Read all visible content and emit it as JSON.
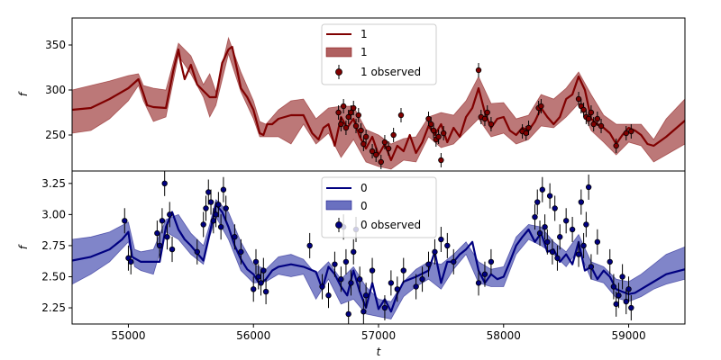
{
  "chart_data": [
    {
      "type": "line",
      "title": "",
      "xlabel": "",
      "ylabel": "f",
      "xlim": [
        54550,
        59450
      ],
      "ylim": [
        210,
        380
      ],
      "xticks": [],
      "yticks": [
        250,
        300,
        350
      ],
      "legend_position": "top-center",
      "colors": {
        "line": "#800000",
        "band": "#B06060",
        "points": "#800000"
      },
      "series": [
        {
          "name": "1",
          "kind": "mean",
          "x": [
            54550,
            54700,
            54850,
            55000,
            55080,
            55120,
            55150,
            55200,
            55300,
            55360,
            55400,
            55420,
            55450,
            55500,
            55550,
            55600,
            55650,
            55700,
            55750,
            55800,
            55830,
            55870,
            55900,
            55950,
            56000,
            56050,
            56080,
            56110,
            56150,
            56200,
            56300,
            56400,
            56470,
            56520,
            56560,
            56600,
            56650,
            56700,
            56750,
            56800,
            56850,
            56900,
            56950,
            57000,
            57050,
            57100,
            57150,
            57200,
            57250,
            57300,
            57350,
            57400,
            57450,
            57500,
            57550,
            57600,
            57650,
            57700,
            57750,
            57800,
            57850,
            57900,
            57950,
            58000,
            58050,
            58100,
            58150,
            58200,
            58250,
            58300,
            58350,
            58400,
            58450,
            58500,
            58550,
            58600,
            58650,
            58700,
            58750,
            58800,
            58850,
            58900,
            58950,
            59000,
            59050,
            59100,
            59150,
            59200,
            59300,
            59450
          ],
          "values": [
            278,
            280,
            290,
            302,
            312,
            296,
            283,
            281,
            280,
            322,
            345,
            330,
            312,
            328,
            306,
            299,
            292,
            292,
            330,
            345,
            348,
            322,
            302,
            292,
            278,
            252,
            250,
            262,
            262,
            268,
            272,
            272,
            252,
            245,
            258,
            262,
            238,
            270,
            258,
            268,
            248,
            235,
            248,
            228,
            240,
            222,
            238,
            232,
            250,
            230,
            242,
            260,
            250,
            262,
            242,
            258,
            248,
            270,
            280,
            302,
            275,
            258,
            268,
            270,
            255,
            250,
            258,
            255,
            265,
            280,
            270,
            262,
            270,
            290,
            295,
            315,
            300,
            268,
            262,
            258,
            252,
            240,
            250,
            258,
            255,
            250,
            240,
            238,
            248,
            266
          ]
        },
        {
          "name": "1",
          "kind": "band",
          "x": [
            54550,
            54700,
            54850,
            55000,
            55080,
            55120,
            55200,
            55300,
            55400,
            55500,
            55600,
            55650,
            55700,
            55800,
            55900,
            56000,
            56050,
            56100,
            56200,
            56300,
            56400,
            56500,
            56600,
            56700,
            56800,
            56900,
            57000,
            57100,
            57200,
            57300,
            57400,
            57500,
            57600,
            57700,
            57800,
            57900,
            58000,
            58100,
            58200,
            58300,
            58400,
            58500,
            58600,
            58700,
            58800,
            58900,
            59000,
            59100,
            59200,
            59300,
            59450
          ],
          "lower": [
            252,
            255,
            268,
            288,
            305,
            288,
            265,
            270,
            338,
            318,
            292,
            270,
            283,
            340,
            298,
            268,
            248,
            248,
            248,
            240,
            262,
            240,
            252,
            225,
            245,
            220,
            215,
            212,
            222,
            220,
            248,
            236,
            240,
            254,
            268,
            248,
            252,
            240,
            245,
            260,
            258,
            270,
            285,
            255,
            242,
            228,
            242,
            238,
            220,
            228,
            240
          ],
          "upper": [
            300,
            305,
            310,
            316,
            318,
            305,
            302,
            300,
            352,
            338,
            306,
            318,
            298,
            358,
            320,
            288,
            265,
            262,
            278,
            288,
            290,
            268,
            280,
            282,
            282,
            256,
            250,
            240,
            246,
            248,
            270,
            275,
            272,
            288,
            315,
            285,
            286,
            268,
            272,
            295,
            290,
            302,
            320,
            295,
            272,
            262,
            262,
            262,
            245,
            268,
            290
          ]
        },
        {
          "name": "1 observed",
          "kind": "observed",
          "x": [
            56680,
            56700,
            56720,
            56740,
            56760,
            56780,
            56800,
            56820,
            56840,
            56860,
            56880,
            56900,
            56950,
            56980,
            57020,
            57050,
            57080,
            57120,
            57180,
            57400,
            57420,
            57440,
            57460,
            57480,
            57500,
            57520,
            57800,
            57820,
            57850,
            57870,
            57900,
            58150,
            58180,
            58200,
            58280,
            58300,
            58600,
            58620,
            58640,
            58660,
            58680,
            58700,
            58720,
            58750,
            58780,
            58900,
            58980,
            59020
          ],
          "values": [
            275,
            262,
            282,
            258,
            270,
            275,
            280,
            260,
            272,
            255,
            240,
            248,
            232,
            228,
            220,
            242,
            235,
            250,
            272,
            268,
            262,
            255,
            245,
            248,
            222,
            252,
            322,
            270,
            268,
            275,
            262,
            254,
            252,
            258,
            280,
            282,
            290,
            282,
            278,
            270,
            268,
            275,
            262,
            268,
            260,
            238,
            252,
            254
          ]
        }
      ]
    },
    {
      "type": "line",
      "title": "",
      "xlabel": "t",
      "ylabel": "f",
      "xlim": [
        54550,
        59450
      ],
      "ylim": [
        2.12,
        3.35
      ],
      "xticks": [
        55000,
        56000,
        57000,
        58000,
        59000
      ],
      "yticks": [
        2.25,
        2.5,
        2.75,
        3.0,
        3.25
      ],
      "legend_position": "top-center",
      "colors": {
        "line": "#000080",
        "band": "#6A70C0",
        "points": "#000080"
      },
      "series": [
        {
          "name": "0",
          "kind": "mean",
          "x": [
            54550,
            54700,
            54850,
            54950,
            55000,
            55030,
            55100,
            55250,
            55300,
            55350,
            55400,
            55450,
            55500,
            55600,
            55650,
            55700,
            55750,
            55800,
            55850,
            55900,
            55950,
            56000,
            56050,
            56100,
            56150,
            56200,
            56300,
            56400,
            56500,
            56550,
            56600,
            56650,
            56700,
            56750,
            56800,
            56850,
            56900,
            56950,
            57000,
            57050,
            57100,
            57150,
            57200,
            57300,
            57400,
            57450,
            57500,
            57550,
            57600,
            57650,
            57700,
            57750,
            57800,
            57850,
            57900,
            57950,
            58000,
            58050,
            58100,
            58150,
            58200,
            58250,
            58300,
            58350,
            58400,
            58450,
            58500,
            58550,
            58600,
            58650,
            58700,
            58750,
            58800,
            58850,
            58900,
            58950,
            59000,
            59050,
            59100,
            59200,
            59300,
            59450
          ],
          "values": [
            2.63,
            2.66,
            2.72,
            2.8,
            2.86,
            2.66,
            2.62,
            2.62,
            2.9,
            3.02,
            2.88,
            2.8,
            2.75,
            2.63,
            2.85,
            3.08,
            3.02,
            2.9,
            2.75,
            2.64,
            2.56,
            2.52,
            2.44,
            2.48,
            2.55,
            2.58,
            2.6,
            2.58,
            2.54,
            2.4,
            2.58,
            2.52,
            2.42,
            2.35,
            2.55,
            2.38,
            2.25,
            2.45,
            2.24,
            2.32,
            2.22,
            2.36,
            2.46,
            2.5,
            2.55,
            2.7,
            2.45,
            2.62,
            2.62,
            2.68,
            2.72,
            2.78,
            2.55,
            2.45,
            2.52,
            2.48,
            2.5,
            2.62,
            2.75,
            2.82,
            2.88,
            2.78,
            2.85,
            2.7,
            2.72,
            2.62,
            2.68,
            2.6,
            2.78,
            2.55,
            2.58,
            2.48,
            2.55,
            2.5,
            2.4,
            2.38,
            2.36,
            2.37,
            2.4,
            2.46,
            2.52,
            2.56
          ]
        },
        {
          "name": "0",
          "kind": "band",
          "x": [
            54550,
            54700,
            54850,
            55000,
            55050,
            55100,
            55200,
            55300,
            55400,
            55500,
            55600,
            55650,
            55700,
            55800,
            55900,
            56000,
            56100,
            56200,
            56300,
            56400,
            56500,
            56600,
            56700,
            56800,
            56900,
            57000,
            57100,
            57200,
            57300,
            57400,
            57500,
            57600,
            57700,
            57800,
            57900,
            58000,
            58100,
            58200,
            58300,
            58400,
            58500,
            58600,
            58700,
            58800,
            58900,
            59000,
            59100,
            59200,
            59300,
            59450
          ],
          "lower": [
            2.44,
            2.52,
            2.62,
            2.78,
            2.58,
            2.55,
            2.52,
            2.86,
            2.8,
            2.68,
            2.6,
            2.82,
            2.98,
            2.8,
            2.55,
            2.45,
            2.46,
            2.52,
            2.5,
            2.52,
            2.32,
            2.48,
            2.28,
            2.32,
            2.2,
            2.18,
            2.16,
            2.34,
            2.42,
            2.48,
            2.4,
            2.56,
            2.68,
            2.45,
            2.42,
            2.42,
            2.68,
            2.8,
            2.75,
            2.68,
            2.58,
            2.72,
            2.48,
            2.45,
            2.33,
            2.3,
            2.34,
            2.4,
            2.44,
            2.48
          ],
          "upper": [
            2.8,
            2.82,
            2.86,
            2.94,
            2.72,
            2.7,
            2.72,
            2.96,
            3.0,
            2.85,
            2.75,
            2.92,
            3.12,
            3.02,
            2.78,
            2.6,
            2.56,
            2.66,
            2.68,
            2.64,
            2.52,
            2.62,
            2.48,
            2.58,
            2.42,
            2.32,
            2.3,
            2.46,
            2.56,
            2.62,
            2.6,
            2.68,
            2.78,
            2.62,
            2.56,
            2.58,
            2.82,
            2.92,
            2.9,
            2.78,
            2.7,
            2.84,
            2.62,
            2.58,
            2.48,
            2.46,
            2.52,
            2.6,
            2.68,
            2.74
          ]
        },
        {
          "name": "0 observed",
          "kind": "observed",
          "x": [
            54970,
            55000,
            55020,
            55230,
            55250,
            55270,
            55290,
            55310,
            55330,
            55350,
            55550,
            55600,
            55620,
            55640,
            55660,
            55680,
            55700,
            55720,
            55740,
            55760,
            55780,
            55850,
            55900,
            56000,
            56020,
            56040,
            56060,
            56080,
            56100,
            56450,
            56550,
            56600,
            56650,
            56700,
            56720,
            56740,
            56760,
            56780,
            56800,
            56820,
            56850,
            56880,
            56900,
            56950,
            57050,
            57100,
            57150,
            57200,
            57300,
            57350,
            57400,
            57450,
            57500,
            57550,
            57600,
            57800,
            57850,
            57900,
            58250,
            58270,
            58290,
            58310,
            58330,
            58350,
            58370,
            58390,
            58410,
            58430,
            58450,
            58500,
            58550,
            58600,
            58620,
            58640,
            58660,
            58680,
            58700,
            58750,
            58850,
            58880,
            58900,
            58920,
            58950,
            58980,
            59000,
            59020
          ],
          "values": [
            2.95,
            2.65,
            2.62,
            2.85,
            2.75,
            2.95,
            3.25,
            2.82,
            3.0,
            2.72,
            2.7,
            2.92,
            3.05,
            3.18,
            3.1,
            2.95,
            3.0,
            3.08,
            2.9,
            3.2,
            3.05,
            2.82,
            2.7,
            2.4,
            2.62,
            2.5,
            2.45,
            2.55,
            2.38,
            2.75,
            2.42,
            2.35,
            2.6,
            2.48,
            2.9,
            2.62,
            2.2,
            2.45,
            2.7,
            2.88,
            2.48,
            2.22,
            2.35,
            2.55,
            2.25,
            2.45,
            2.4,
            2.55,
            2.42,
            2.48,
            2.6,
            2.7,
            2.8,
            2.75,
            2.62,
            2.45,
            2.52,
            2.62,
            2.98,
            3.1,
            2.85,
            3.2,
            2.9,
            2.78,
            3.15,
            2.7,
            3.05,
            2.65,
            2.82,
            2.95,
            2.88,
            2.68,
            3.1,
            2.75,
            2.92,
            3.22,
            2.58,
            2.78,
            2.62,
            2.42,
            2.28,
            2.35,
            2.5,
            2.3,
            2.4,
            2.25
          ]
        }
      ]
    }
  ],
  "panels": [
    {
      "ylabel": "f",
      "ytick_labels": [
        "250",
        "300",
        "350"
      ],
      "legend": [
        "1",
        "1",
        "1 observed"
      ]
    },
    {
      "ylabel": "f",
      "ytick_labels": [
        "2.25",
        "2.50",
        "2.75",
        "3.00",
        "3.25"
      ],
      "legend": [
        "0",
        "0",
        "0 observed"
      ],
      "xlabel": "t",
      "xtick_labels": [
        "55000",
        "56000",
        "57000",
        "58000",
        "59000"
      ]
    }
  ]
}
